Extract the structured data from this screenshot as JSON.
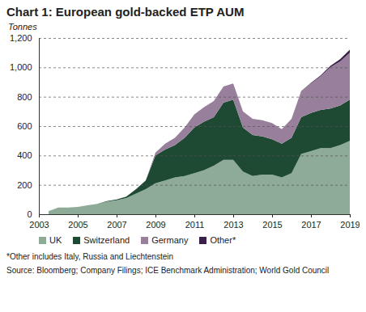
{
  "chart_data": {
    "type": "area",
    "title": "Chart 1: European gold-backed ETP AUM",
    "ylabel": "Tonnes",
    "stacked": true,
    "grid": true,
    "legend": "bottom",
    "notes": [
      "*Other includes Italy, Russia and Liechtenstein",
      "Source: Bloomberg; Company Filings; ICE Benchmark Administration; World Gold Council"
    ],
    "x": [
      2003.5,
      2004,
      2004.5,
      2005,
      2005.5,
      2006,
      2006.5,
      2007,
      2007.5,
      2008,
      2008.5,
      2009,
      2009.5,
      2010,
      2010.5,
      2011,
      2011.5,
      2012,
      2012.5,
      2013,
      2013.5,
      2014,
      2014.5,
      2015,
      2015.5,
      2016,
      2016.5,
      2017,
      2017.5,
      2018,
      2018.5,
      2019
    ],
    "xlim": [
      2003,
      2019
    ],
    "xticks": [
      2003,
      2005,
      2007,
      2009,
      2011,
      2013,
      2015,
      2017,
      2019
    ],
    "ylim": [
      0,
      1200
    ],
    "yticks": [
      0,
      200,
      400,
      600,
      800,
      {
        "value": 1000,
        "label": "1,000"
      },
      {
        "value": 1200,
        "label": "1,200"
      }
    ],
    "series": [
      {
        "name": "UK",
        "color": "#8dab96",
        "values": [
          20,
          45,
          45,
          50,
          60,
          70,
          85,
          95,
          110,
          140,
          170,
          210,
          230,
          250,
          260,
          280,
          300,
          330,
          370,
          370,
          290,
          260,
          270,
          270,
          250,
          280,
          410,
          430,
          450,
          450,
          470,
          500
        ]
      },
      {
        "name": "Switzerland",
        "color": "#1e4a33",
        "values": [
          0,
          0,
          0,
          0,
          0,
          0,
          5,
          5,
          10,
          30,
          60,
          190,
          210,
          220,
          260,
          310,
          330,
          330,
          390,
          410,
          300,
          280,
          260,
          240,
          230,
          240,
          250,
          260,
          260,
          270,
          270,
          280
        ]
      },
      {
        "name": "Germany",
        "color": "#98809c",
        "values": [
          0,
          0,
          0,
          0,
          0,
          0,
          0,
          0,
          0,
          0,
          0,
          20,
          40,
          50,
          70,
          90,
          100,
          110,
          110,
          110,
          110,
          110,
          110,
          110,
          100,
          130,
          180,
          200,
          230,
          280,
          300,
          320
        ]
      },
      {
        "name": "Other*",
        "color": "#3a1f48",
        "values": [
          0,
          0,
          0,
          0,
          0,
          0,
          0,
          0,
          0,
          0,
          0,
          0,
          0,
          0,
          0,
          0,
          0,
          0,
          0,
          0,
          0,
          0,
          0,
          0,
          0,
          0,
          0,
          5,
          5,
          10,
          15,
          20
        ]
      }
    ]
  }
}
